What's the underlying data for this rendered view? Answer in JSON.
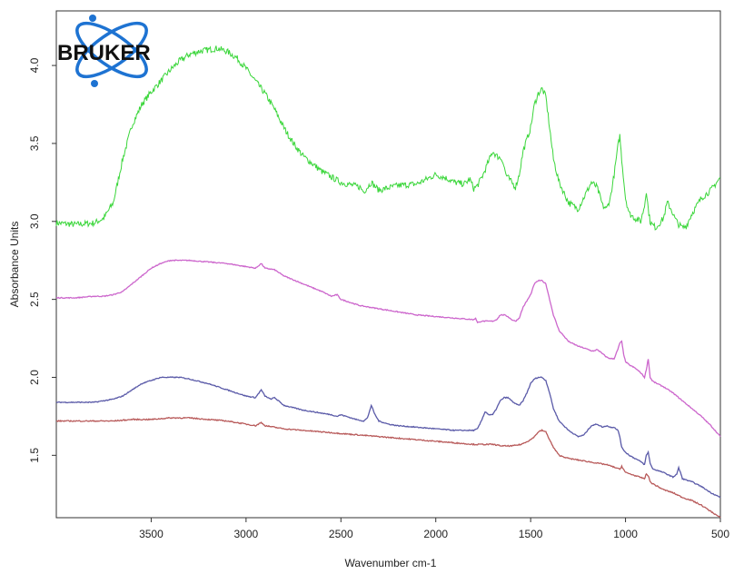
{
  "logo": {
    "text": "BRUKER",
    "ring_color": "#1e73d2"
  },
  "chart_data": {
    "type": "line",
    "title": "",
    "xlabel": "Wavenumber cm-1",
    "ylabel": "Absorbance Units",
    "xlim": [
      4000,
      500
    ],
    "ylim": [
      1.1,
      4.35
    ],
    "x_reversed": true,
    "grid": false,
    "xticks": [
      3500,
      3000,
      2500,
      2000,
      1500,
      1000,
      500
    ],
    "yticks": [
      1.5,
      2.0,
      2.5,
      3.0,
      3.5,
      4.0
    ],
    "ytick_labels": [
      "1.5",
      "2.0",
      "2.5",
      "3.0",
      "3.5",
      "4.0"
    ],
    "series": [
      {
        "color": "#3ad63a",
        "noise": 0.04,
        "x": [
          4000,
          3900,
          3800,
          3750,
          3700,
          3650,
          3600,
          3550,
          3500,
          3450,
          3400,
          3350,
          3300,
          3250,
          3200,
          3150,
          3100,
          3050,
          3000,
          2950,
          2900,
          2850,
          2800,
          2750,
          2700,
          2600,
          2500,
          2400,
          2380,
          2340,
          2300,
          2200,
          2100,
          2000,
          1950,
          1900,
          1850,
          1820,
          1800,
          1780,
          1750,
          1700,
          1680,
          1650,
          1630,
          1600,
          1580,
          1560,
          1540,
          1500,
          1480,
          1460,
          1440,
          1420,
          1400,
          1380,
          1350,
          1300,
          1250,
          1200,
          1180,
          1150,
          1120,
          1100,
          1080,
          1060,
          1040,
          1030,
          1020,
          1000,
          980,
          950,
          920,
          900,
          890,
          880,
          870,
          860,
          840,
          800,
          780,
          760,
          740,
          720,
          700,
          680,
          650,
          600,
          550,
          520,
          500
        ],
        "y": [
          2.99,
          2.98,
          2.99,
          3.02,
          3.12,
          3.4,
          3.62,
          3.75,
          3.83,
          3.9,
          3.97,
          4.03,
          4.07,
          4.09,
          4.1,
          4.11,
          4.09,
          4.05,
          3.98,
          3.9,
          3.82,
          3.72,
          3.6,
          3.5,
          3.42,
          3.32,
          3.25,
          3.22,
          3.19,
          3.25,
          3.2,
          3.23,
          3.24,
          3.3,
          3.28,
          3.25,
          3.24,
          3.27,
          3.21,
          3.23,
          3.3,
          3.45,
          3.42,
          3.4,
          3.3,
          3.25,
          3.22,
          3.3,
          3.45,
          3.6,
          3.75,
          3.82,
          3.85,
          3.8,
          3.6,
          3.4,
          3.25,
          3.12,
          3.08,
          3.2,
          3.25,
          3.22,
          3.1,
          3.08,
          3.15,
          3.3,
          3.48,
          3.55,
          3.4,
          3.15,
          3.05,
          3.02,
          3.0,
          3.1,
          3.2,
          3.08,
          3.0,
          2.98,
          2.96,
          3.02,
          3.12,
          3.08,
          3.02,
          2.98,
          2.96,
          2.97,
          3.05,
          3.15,
          3.2,
          3.25,
          3.28
        ]
      },
      {
        "color": "#cc66cc",
        "noise": 0.006,
        "x": [
          4000,
          3900,
          3800,
          3750,
          3700,
          3650,
          3600,
          3550,
          3500,
          3450,
          3400,
          3350,
          3300,
          3200,
          3100,
          3000,
          2950,
          2920,
          2900,
          2850,
          2800,
          2700,
          2600,
          2550,
          2520,
          2500,
          2400,
          2300,
          2200,
          2100,
          2000,
          1900,
          1800,
          1790,
          1780,
          1760,
          1700,
          1680,
          1660,
          1640,
          1620,
          1600,
          1580,
          1560,
          1540,
          1500,
          1480,
          1460,
          1440,
          1420,
          1400,
          1380,
          1350,
          1300,
          1250,
          1200,
          1180,
          1160,
          1150,
          1120,
          1100,
          1080,
          1060,
          1040,
          1030,
          1020,
          1010,
          1000,
          980,
          950,
          920,
          900,
          890,
          880,
          870,
          860,
          850,
          800,
          750,
          700,
          650,
          600,
          550,
          500
        ],
        "y": [
          2.51,
          2.51,
          2.52,
          2.52,
          2.53,
          2.55,
          2.6,
          2.65,
          2.7,
          2.73,
          2.75,
          2.75,
          2.75,
          2.74,
          2.73,
          2.71,
          2.7,
          2.73,
          2.7,
          2.69,
          2.65,
          2.6,
          2.55,
          2.52,
          2.53,
          2.5,
          2.46,
          2.44,
          2.42,
          2.4,
          2.39,
          2.38,
          2.37,
          2.38,
          2.35,
          2.36,
          2.36,
          2.37,
          2.4,
          2.4,
          2.39,
          2.37,
          2.36,
          2.38,
          2.45,
          2.53,
          2.6,
          2.62,
          2.62,
          2.6,
          2.5,
          2.4,
          2.3,
          2.23,
          2.2,
          2.18,
          2.17,
          2.17,
          2.18,
          2.15,
          2.13,
          2.12,
          2.12,
          2.18,
          2.22,
          2.23,
          2.15,
          2.1,
          2.08,
          2.06,
          2.03,
          2.0,
          2.05,
          2.12,
          2.0,
          1.98,
          1.97,
          1.94,
          1.9,
          1.85,
          1.8,
          1.75,
          1.69,
          1.62
        ]
      },
      {
        "color": "#5a5aa8",
        "noise": 0.006,
        "x": [
          4000,
          3900,
          3800,
          3750,
          3700,
          3650,
          3600,
          3550,
          3500,
          3450,
          3400,
          3350,
          3300,
          3200,
          3100,
          3000,
          2950,
          2920,
          2900,
          2870,
          2850,
          2800,
          2700,
          2600,
          2550,
          2520,
          2500,
          2420,
          2380,
          2360,
          2340,
          2320,
          2300,
          2250,
          2200,
          2100,
          2000,
          1900,
          1800,
          1780,
          1760,
          1740,
          1720,
          1700,
          1680,
          1660,
          1640,
          1620,
          1600,
          1580,
          1560,
          1540,
          1520,
          1500,
          1480,
          1460,
          1440,
          1420,
          1400,
          1380,
          1350,
          1300,
          1250,
          1220,
          1200,
          1180,
          1150,
          1120,
          1100,
          1080,
          1060,
          1040,
          1030,
          1020,
          1000,
          980,
          950,
          920,
          900,
          890,
          880,
          870,
          860,
          850,
          800,
          750,
          730,
          720,
          710,
          700,
          650,
          600,
          550,
          500
        ],
        "y": [
          1.84,
          1.84,
          1.84,
          1.85,
          1.86,
          1.88,
          1.92,
          1.96,
          1.98,
          2.0,
          2.0,
          2.0,
          1.99,
          1.96,
          1.92,
          1.88,
          1.87,
          1.92,
          1.88,
          1.86,
          1.87,
          1.82,
          1.79,
          1.77,
          1.76,
          1.75,
          1.76,
          1.73,
          1.72,
          1.74,
          1.82,
          1.76,
          1.72,
          1.7,
          1.69,
          1.68,
          1.67,
          1.66,
          1.66,
          1.67,
          1.72,
          1.78,
          1.76,
          1.76,
          1.8,
          1.85,
          1.87,
          1.87,
          1.85,
          1.83,
          1.82,
          1.85,
          1.9,
          1.96,
          1.99,
          2.0,
          2.0,
          1.98,
          1.9,
          1.8,
          1.72,
          1.66,
          1.62,
          1.63,
          1.66,
          1.69,
          1.7,
          1.68,
          1.69,
          1.68,
          1.68,
          1.66,
          1.62,
          1.55,
          1.52,
          1.5,
          1.48,
          1.46,
          1.44,
          1.5,
          1.52,
          1.45,
          1.42,
          1.41,
          1.39,
          1.36,
          1.38,
          1.42,
          1.39,
          1.35,
          1.33,
          1.3,
          1.26,
          1.23
        ]
      },
      {
        "color": "#b85a5a",
        "noise": 0.007,
        "x": [
          4000,
          3900,
          3800,
          3700,
          3600,
          3500,
          3400,
          3300,
          3200,
          3100,
          3000,
          2950,
          2920,
          2900,
          2800,
          2700,
          2600,
          2500,
          2400,
          2300,
          2200,
          2100,
          2000,
          1900,
          1800,
          1700,
          1650,
          1600,
          1550,
          1500,
          1480,
          1460,
          1440,
          1420,
          1400,
          1380,
          1350,
          1300,
          1200,
          1100,
          1050,
          1030,
          1020,
          1000,
          950,
          900,
          890,
          880,
          870,
          860,
          800,
          750,
          700,
          650,
          600,
          550,
          500
        ],
        "y": [
          1.72,
          1.72,
          1.72,
          1.72,
          1.73,
          1.73,
          1.74,
          1.74,
          1.73,
          1.72,
          1.7,
          1.69,
          1.71,
          1.69,
          1.67,
          1.66,
          1.65,
          1.64,
          1.63,
          1.62,
          1.61,
          1.6,
          1.59,
          1.58,
          1.57,
          1.57,
          1.56,
          1.56,
          1.57,
          1.6,
          1.62,
          1.65,
          1.66,
          1.65,
          1.6,
          1.55,
          1.5,
          1.48,
          1.46,
          1.44,
          1.42,
          1.41,
          1.43,
          1.39,
          1.37,
          1.35,
          1.38,
          1.37,
          1.33,
          1.32,
          1.28,
          1.26,
          1.23,
          1.21,
          1.18,
          1.14,
          1.1
        ]
      }
    ]
  }
}
